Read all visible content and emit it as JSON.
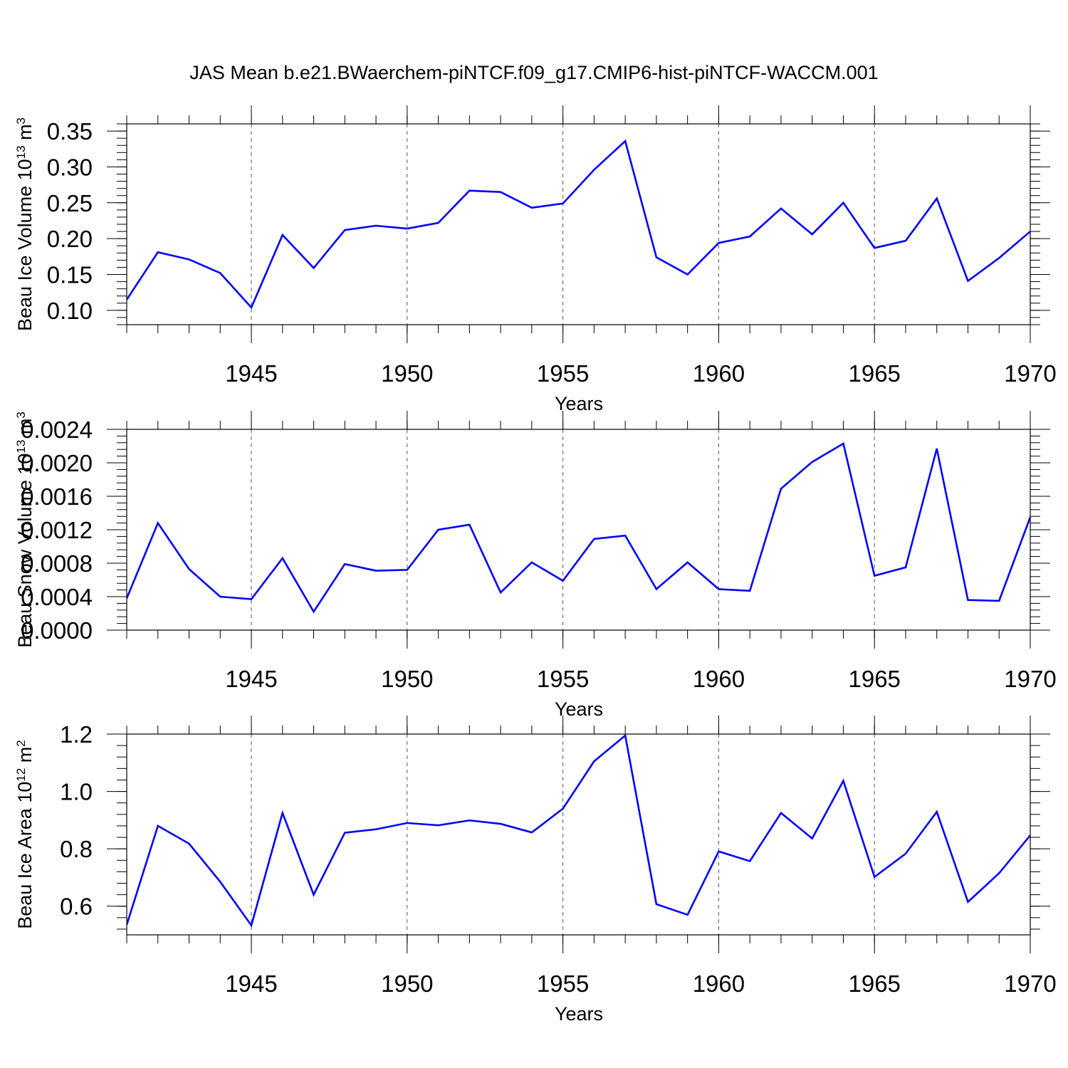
{
  "title": "JAS Mean b.e21.BWaerchem-piNTCF.f09_g17.CMIP6-hist-piNTCF-WACCM.001",
  "line_color": "#0000ff",
  "chart_data": [
    {
      "type": "line",
      "xlabel": "Years",
      "ylabel": {
        "prefix": "Beau Ice Volume 10",
        "exp": "13",
        "unit": " m",
        "unit_exp": "3"
      },
      "xlim": [
        1941,
        1970
      ],
      "ylim": [
        0.08,
        0.36
      ],
      "yticks": [
        0.1,
        0.15,
        0.2,
        0.25,
        0.3,
        0.35
      ],
      "ytick_labels": [
        "0.10",
        "0.15",
        "0.20",
        "0.25",
        "0.30",
        "0.35"
      ],
      "xticks": [
        1945,
        1950,
        1955,
        1960,
        1965,
        1970
      ],
      "xtick_labels": [
        "1945",
        "1950",
        "1955",
        "1960",
        "1965",
        "1970"
      ],
      "x": [
        1941,
        1942,
        1943,
        1944,
        1945,
        1946,
        1947,
        1948,
        1949,
        1950,
        1951,
        1952,
        1953,
        1954,
        1955,
        1956,
        1957,
        1958,
        1959,
        1960,
        1961,
        1962,
        1963,
        1964,
        1965,
        1966,
        1967,
        1968,
        1969,
        1970
      ],
      "values": [
        0.115,
        0.181,
        0.171,
        0.152,
        0.104,
        0.205,
        0.159,
        0.212,
        0.218,
        0.214,
        0.222,
        0.267,
        0.265,
        0.243,
        0.249,
        0.296,
        0.336,
        0.174,
        0.15,
        0.194,
        0.203,
        0.242,
        0.206,
        0.25,
        0.187,
        0.197,
        0.256,
        0.141,
        0.173,
        0.21
      ]
    },
    {
      "type": "line",
      "xlabel": "Years",
      "ylabel": {
        "prefix": "Beau Snow Volume 10",
        "exp": "13",
        "unit": " m",
        "unit_exp": "3"
      },
      "xlim": [
        1941,
        1970
      ],
      "ylim": [
        0.0,
        0.0024
      ],
      "yticks": [
        0.0,
        0.0004,
        0.0008,
        0.0012,
        0.0016,
        0.002,
        0.0024
      ],
      "ytick_labels": [
        "0.0000",
        "0.0004",
        "0.0008",
        "0.0012",
        "0.0016",
        "0.0020",
        "0.0024"
      ],
      "xticks": [
        1945,
        1950,
        1955,
        1960,
        1965,
        1970
      ],
      "xtick_labels": [
        "1945",
        "1950",
        "1955",
        "1960",
        "1965",
        "1970"
      ],
      "x": [
        1941,
        1942,
        1943,
        1944,
        1945,
        1946,
        1947,
        1948,
        1949,
        1950,
        1951,
        1952,
        1953,
        1954,
        1955,
        1956,
        1957,
        1958,
        1959,
        1960,
        1961,
        1962,
        1963,
        1964,
        1965,
        1966,
        1967,
        1968,
        1969,
        1970
      ],
      "values": [
        0.00038,
        0.00128,
        0.00073,
        0.0004,
        0.00037,
        0.00086,
        0.00022,
        0.00079,
        0.00071,
        0.00072,
        0.0012,
        0.00126,
        0.00045,
        0.00081,
        0.00059,
        0.00109,
        0.00113,
        0.00049,
        0.00081,
        0.00049,
        0.00047,
        0.00169,
        0.00201,
        0.00223,
        0.00065,
        0.00075,
        0.00217,
        0.00036,
        0.00035,
        0.00135
      ]
    },
    {
      "type": "line",
      "xlabel": "Years",
      "ylabel": {
        "prefix": "Beau Ice Area 10",
        "exp": "12",
        "unit": " m",
        "unit_exp": "2"
      },
      "xlim": [
        1941,
        1970
      ],
      "ylim": [
        0.5,
        1.2
      ],
      "yticks": [
        0.6,
        0.8,
        1.0,
        1.2
      ],
      "ytick_labels": [
        "0.6",
        "0.8",
        "1.0",
        "1.2"
      ],
      "xticks": [
        1945,
        1950,
        1955,
        1960,
        1965,
        1970
      ],
      "xtick_labels": [
        "1945",
        "1950",
        "1955",
        "1960",
        "1965",
        "1970"
      ],
      "x": [
        1941,
        1942,
        1943,
        1944,
        1945,
        1946,
        1947,
        1948,
        1949,
        1950,
        1951,
        1952,
        1953,
        1954,
        1955,
        1956,
        1957,
        1958,
        1959,
        1960,
        1961,
        1962,
        1963,
        1964,
        1965,
        1966,
        1967,
        1968,
        1969,
        1970
      ],
      "values": [
        0.535,
        0.88,
        0.818,
        0.685,
        0.533,
        0.925,
        0.64,
        0.856,
        0.868,
        0.89,
        0.882,
        0.899,
        0.887,
        0.857,
        0.94,
        1.105,
        1.195,
        0.607,
        0.57,
        0.791,
        0.757,
        0.925,
        0.836,
        1.037,
        0.702,
        0.783,
        0.929,
        0.615,
        0.715,
        0.847
      ]
    }
  ]
}
